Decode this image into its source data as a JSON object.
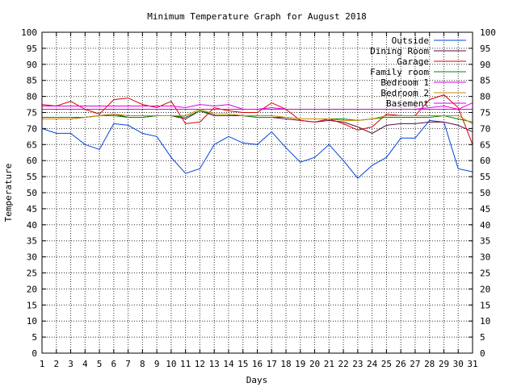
{
  "chart_data": {
    "type": "line",
    "title": "Minimum Temperature Graph for August 2018",
    "xlabel": "Days",
    "ylabel": "Temperature",
    "xlim": [
      1,
      31
    ],
    "ylim": [
      0,
      100
    ],
    "x_ticks": [
      1,
      2,
      3,
      4,
      5,
      6,
      7,
      8,
      9,
      10,
      11,
      12,
      13,
      14,
      15,
      16,
      17,
      18,
      19,
      20,
      21,
      22,
      23,
      24,
      25,
      26,
      27,
      28,
      29,
      30,
      31
    ],
    "y_ticks": [
      0,
      5,
      10,
      15,
      20,
      25,
      30,
      35,
      40,
      45,
      50,
      55,
      60,
      65,
      70,
      75,
      80,
      85,
      90,
      95,
      100
    ],
    "grid": true,
    "legend_position": "top-right",
    "x": [
      1,
      2,
      3,
      4,
      5,
      6,
      7,
      8,
      9,
      10,
      11,
      12,
      13,
      14,
      15,
      16,
      17,
      18,
      19,
      20,
      21,
      22,
      23,
      24,
      25,
      26,
      27,
      28,
      29,
      30,
      31
    ],
    "series": [
      {
        "name": "Outside",
        "color": "#0044dd",
        "values": [
          70,
          68.5,
          68.5,
          65,
          63.5,
          71.5,
          71,
          68.5,
          67.5,
          61,
          56,
          57.5,
          65,
          67.5,
          65.5,
          65,
          69,
          64,
          59.5,
          61,
          65,
          60,
          54.5,
          58.5,
          61,
          67,
          67,
          72.5,
          72,
          57.5,
          56.5
        ]
      },
      {
        "name": "Dining Room",
        "color": "#5a0a3c",
        "values": [
          73,
          73,
          73,
          73.5,
          74,
          74.5,
          73.5,
          73.5,
          74,
          74,
          73,
          75.5,
          74,
          74,
          74,
          73.5,
          73.5,
          73,
          72.5,
          72,
          72.5,
          72,
          70.5,
          68.5,
          71,
          71.5,
          71.5,
          72,
          72,
          71,
          69
        ]
      },
      {
        "name": "Garage",
        "color": "#dd0000",
        "values": [
          77.5,
          77,
          78.5,
          76,
          74.5,
          79,
          79.5,
          77.5,
          76.5,
          78.5,
          71.5,
          72,
          76.5,
          75.5,
          75,
          75,
          78,
          76,
          72.5,
          72,
          73,
          71.5,
          69.5,
          70.5,
          74.5,
          74,
          74,
          79,
          80.5,
          76.5,
          65
        ]
      },
      {
        "name": "Family room",
        "color": "#008800",
        "values": [
          73.5,
          73.5,
          73.5,
          73.5,
          74,
          74,
          73.5,
          73.5,
          74,
          74,
          73.5,
          75.5,
          74.5,
          74.5,
          74,
          73.5,
          73.5,
          73.5,
          73,
          73,
          73,
          73,
          72.5,
          73,
          73.5,
          73.5,
          73.5,
          73.5,
          74,
          73,
          72
        ]
      },
      {
        "name": "Bedroom 1",
        "color": "#dd00dd",
        "values": [
          76,
          76,
          76,
          76,
          76,
          76,
          76,
          76,
          76,
          76,
          76,
          76,
          76,
          76,
          76,
          76,
          76,
          76,
          76,
          76,
          76,
          76,
          76,
          76,
          76,
          76,
          76,
          76,
          76,
          76,
          76
        ]
      },
      {
        "name": "Bedroom 2",
        "color": "#cc8800",
        "values": [
          73,
          73,
          73,
          73.5,
          74,
          74.5,
          74,
          74,
          74,
          74,
          74,
          76,
          74.5,
          74.5,
          74,
          74,
          74,
          73.5,
          73,
          73,
          73,
          72.5,
          72.5,
          73,
          74,
          74,
          74,
          74,
          74,
          74,
          71.5
        ]
      },
      {
        "name": "Basement",
        "color": "#dd00dd",
        "values": [
          77,
          77,
          77,
          77,
          77,
          77,
          77,
          77,
          77,
          77,
          76.5,
          77.5,
          77,
          77.5,
          76,
          76,
          76.5,
          76,
          76,
          76,
          76,
          76,
          76,
          76,
          76,
          76,
          76,
          76.5,
          77,
          76,
          78
        ]
      }
    ]
  }
}
